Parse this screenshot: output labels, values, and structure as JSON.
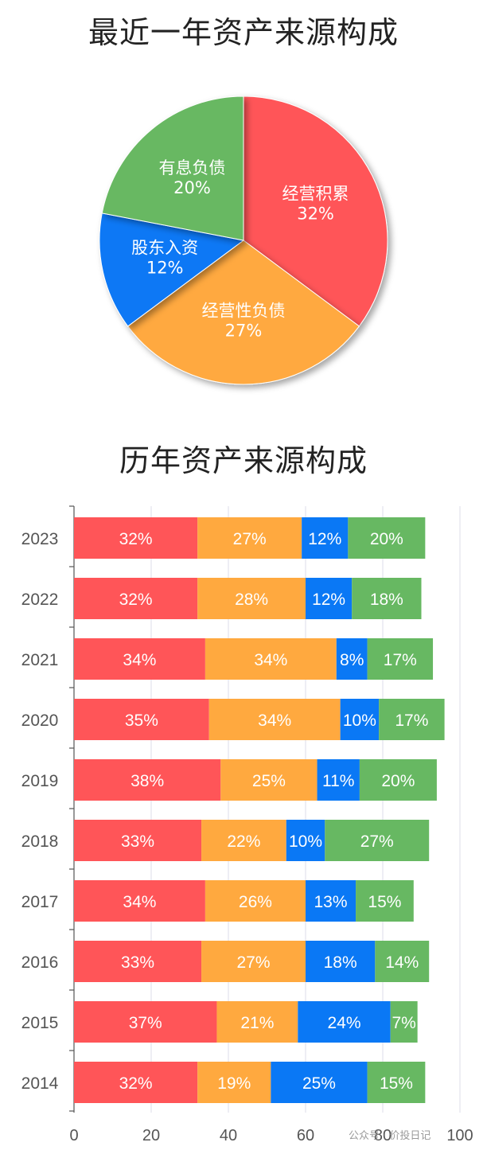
{
  "chart_data": [
    {
      "type": "pie",
      "title": "最近一年资产来源构成",
      "slices": [
        {
          "name": "经营积累",
          "value": 32,
          "label": "32%",
          "color": "#ff5558"
        },
        {
          "name": "经营性负债",
          "value": 27,
          "label": "27%",
          "color": "#ffa93f"
        },
        {
          "name": "股东入资",
          "value": 12,
          "label": "12%",
          "color": "#0a78f5"
        },
        {
          "name": "有息负债",
          "value": 20,
          "label": "20%",
          "color": "#67b862"
        }
      ]
    },
    {
      "type": "bar",
      "orientation": "horizontal",
      "stacked": true,
      "title": "历年资产来源构成",
      "categories": [
        "2023",
        "2022",
        "2021",
        "2020",
        "2019",
        "2018",
        "2017",
        "2016",
        "2015",
        "2014"
      ],
      "series": [
        {
          "color": "#ff5558",
          "values": [
            32,
            32,
            34,
            35,
            38,
            33,
            34,
            33,
            37,
            32
          ]
        },
        {
          "color": "#ffa93f",
          "values": [
            27,
            28,
            34,
            34,
            25,
            22,
            26,
            27,
            21,
            19
          ]
        },
        {
          "color": "#0a78f5",
          "values": [
            12,
            12,
            8,
            10,
            11,
            10,
            13,
            18,
            24,
            25
          ]
        },
        {
          "color": "#67b862",
          "values": [
            20,
            18,
            17,
            17,
            20,
            27,
            15,
            14,
            7,
            15
          ]
        }
      ],
      "xlim": [
        0,
        100
      ],
      "xticks": [
        0,
        20,
        40,
        60,
        80,
        100
      ],
      "grid": true
    }
  ],
  "watermark": "公众号 · 价投日记"
}
